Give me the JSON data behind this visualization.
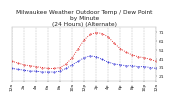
{
  "title": "Milwaukee Weather Outdoor Temp / Dew Point\nby Minute\n(24 Hours) (Alternate)",
  "title_fontsize": 4.2,
  "title_color": "#222222",
  "bg_color": "#ffffff",
  "plot_bg_color": "#ffffff",
  "grid_color": "#aaaaaa",
  "red_color": "#dd0000",
  "blue_color": "#0000cc",
  "tick_color": "#222222",
  "tick_fontsize": 3.2,
  "yticks": [
    21,
    31,
    41,
    51,
    61,
    71
  ],
  "ylim": [
    16,
    76
  ],
  "xlim": [
    0,
    1439
  ],
  "xtick_positions": [
    0,
    120,
    240,
    360,
    480,
    600,
    720,
    840,
    960,
    1080,
    1200,
    1320,
    1439
  ],
  "xtick_labels": [
    "12a",
    "2a",
    "4a",
    "6a",
    "8a",
    "10a",
    "12p",
    "2p",
    "4p",
    "6p",
    "8p",
    "10p",
    "12a"
  ],
  "temp_x": [
    0,
    60,
    120,
    180,
    240,
    300,
    360,
    420,
    480,
    540,
    600,
    660,
    720,
    780,
    840,
    900,
    960,
    1020,
    1080,
    1140,
    1200,
    1260,
    1320,
    1380,
    1439
  ],
  "temp_y": [
    38,
    36,
    34,
    33,
    32,
    31,
    30,
    30,
    31,
    35,
    42,
    52,
    62,
    68,
    70,
    69,
    65,
    58,
    52,
    48,
    45,
    43,
    42,
    40,
    38
  ],
  "dew_x": [
    0,
    60,
    120,
    180,
    240,
    300,
    360,
    420,
    480,
    540,
    600,
    660,
    720,
    780,
    840,
    900,
    960,
    1020,
    1080,
    1140,
    1200,
    1260,
    1320,
    1380,
    1439
  ],
  "dew_y": [
    30,
    29,
    28,
    27,
    27,
    26,
    26,
    26,
    27,
    30,
    34,
    38,
    42,
    44,
    43,
    40,
    37,
    35,
    34,
    33,
    33,
    32,
    32,
    31,
    30
  ]
}
